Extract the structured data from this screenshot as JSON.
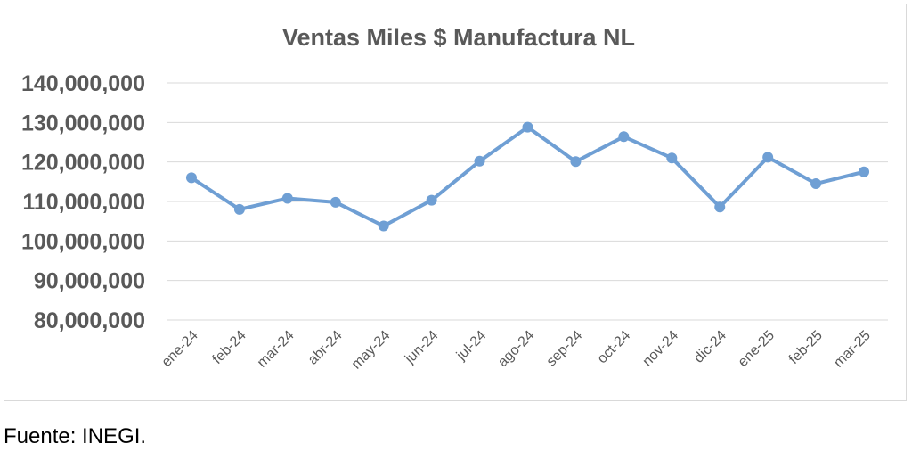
{
  "chart_data": {
    "type": "line",
    "title": "Ventas Miles $ Manufactura NL",
    "xlabel": "",
    "ylabel": "",
    "categories": [
      "ene-24",
      "feb-24",
      "mar-24",
      "abr-24",
      "may-24",
      "jun-24",
      "jul-24",
      "ago-24",
      "sep-24",
      "oct-24",
      "nov-24",
      "dic-24",
      "ene-25",
      "feb-25",
      "mar-25"
    ],
    "series": [
      {
        "values": [
          116000000,
          108000000,
          110800000,
          109800000,
          103800000,
          110300000,
          120200000,
          128800000,
          120100000,
          126400000,
          121000000,
          108600000,
          121200000,
          114500000,
          117500000
        ]
      }
    ],
    "y_ticks": [
      "80,000,000",
      "90,000,000",
      "100,000,000",
      "110,000,000",
      "120,000,000",
      "130,000,000",
      "140,000,000"
    ],
    "ylim": [
      80000000,
      140000000
    ],
    "grid": true,
    "legend": "none",
    "line_color": "#6f9fd4"
  },
  "source_note": "Fuente: INEGI."
}
